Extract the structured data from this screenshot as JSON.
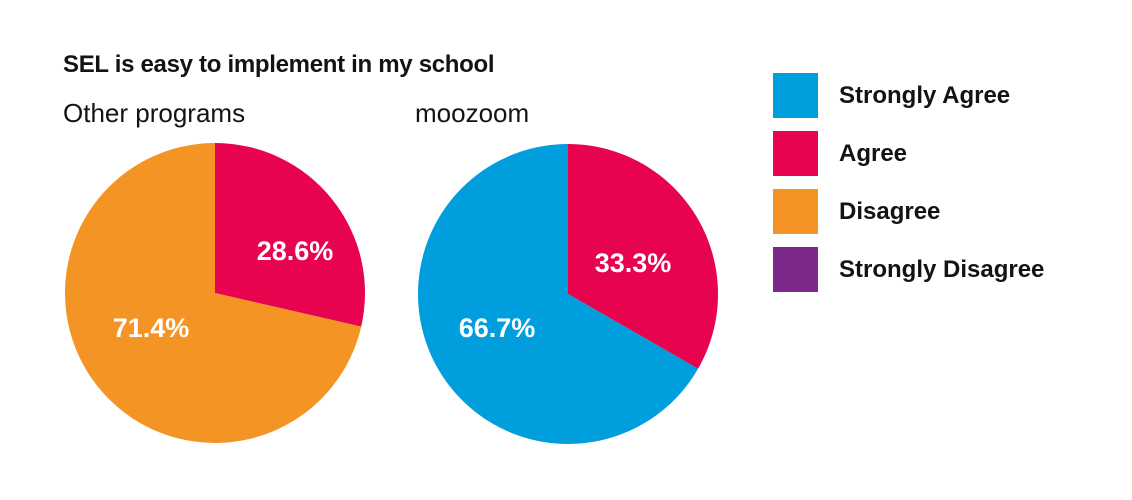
{
  "title": "SEL is easy to implement in my school",
  "legend": {
    "position": "right",
    "items": [
      {
        "label": "Strongly Agree",
        "color": "#009EDD"
      },
      {
        "label": "Agree",
        "color": "#E7034E"
      },
      {
        "label": "Disagree",
        "color": "#F49425"
      },
      {
        "label": "Strongly Disagree",
        "color": "#7B2A8C"
      }
    ]
  },
  "chart_data": {
    "type": "pie",
    "title": "SEL is easy to implement in my school",
    "legend_position": "right",
    "categories": [
      "Strongly Agree",
      "Agree",
      "Disagree",
      "Strongly Disagree"
    ],
    "colors": {
      "Strongly Agree": "#009EDD",
      "Agree": "#E7034E",
      "Disagree": "#F49425",
      "Strongly Disagree": "#7B2A8C"
    },
    "pies": [
      {
        "label": "Other programs",
        "start_angle_deg": 0,
        "direction": "clockwise",
        "slices": [
          {
            "category": "Agree",
            "value": 28.6,
            "display": "28.6%",
            "label_offset": [
              80,
              -42
            ]
          },
          {
            "category": "Disagree",
            "value": 71.4,
            "display": "71.4%",
            "label_offset": [
              -64,
              35
            ]
          }
        ]
      },
      {
        "label": "moozoom",
        "start_angle_deg": 0,
        "direction": "clockwise",
        "slices": [
          {
            "category": "Agree",
            "value": 33.3,
            "display": "33.3%",
            "label_offset": [
              65,
              -31
            ]
          },
          {
            "category": "Strongly Agree",
            "value": 66.7,
            "display": "66.7%",
            "label_offset": [
              -71,
              34
            ]
          }
        ]
      }
    ]
  }
}
